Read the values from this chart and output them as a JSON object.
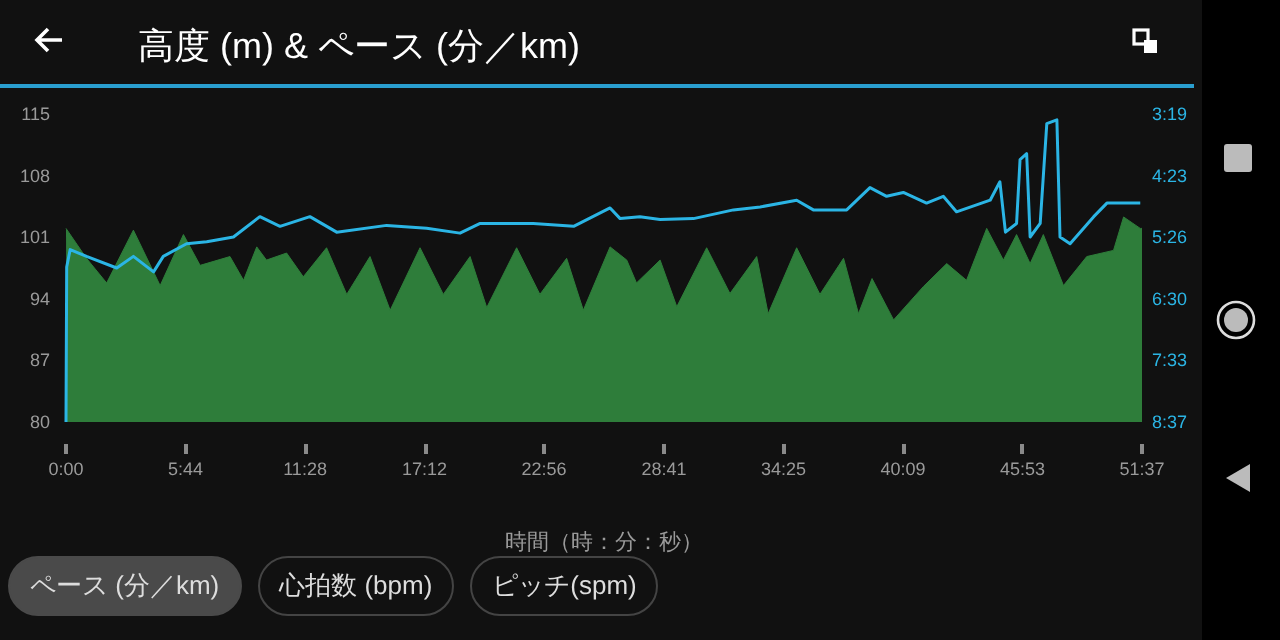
{
  "chart_data": {
    "type": "area",
    "title": "高度 (m) & ペース (分／km)",
    "xlabel": "時間（時：分：秒）",
    "series": [
      {
        "color": "#2e7d3a",
        "x": [
          0,
          2,
          59,
          117,
          194,
          271,
          338,
          386,
          472,
          511,
          549,
          577,
          635,
          683,
          750,
          808,
          875,
          933,
          1019,
          1086,
          1163,
          1211,
          1297,
          1364,
          1441,
          1489,
          1566,
          1614,
          1642,
          1710,
          1758,
          1844,
          1911,
          1988,
          2021,
          2103,
          2170,
          2238,
          2281,
          2320,
          2382,
          2468,
          2535,
          2592,
          2650,
          2698,
          2736,
          2775,
          2813,
          2871,
          2938,
          3015,
          3044,
          3092,
          3097
        ],
        "values": [
          102,
          102,
          98.6,
          95.8,
          101.8,
          95.5,
          101.3,
          97.8,
          98.8,
          96.1,
          99.9,
          98.4,
          99.2,
          96.5,
          99.8,
          94.5,
          98.8,
          92.7,
          99.8,
          94.5,
          98.8,
          93,
          99.8,
          94.5,
          98.6,
          92.7,
          99.9,
          98.4,
          95.8,
          98.4,
          93.1,
          99.8,
          94.6,
          98.8,
          92.3,
          99.8,
          94.5,
          98.6,
          92.3,
          96.3,
          91.6,
          95.4,
          98,
          96.1,
          102,
          98.4,
          101.3,
          98,
          101.3,
          95.5,
          98.8,
          99.5,
          103.3,
          102,
          102
        ]
      },
      {
        "type": "line",
        "axis": "y2",
        "color": "#2bb5e5",
        "x": [
          0,
          2,
          12,
          59,
          146,
          194,
          252,
          280,
          347,
          405,
          482,
          558,
          616,
          702,
          779,
          923,
          1038,
          1134,
          1192,
          1345,
          1461,
          1566,
          1595,
          1652,
          1710,
          1806,
          1921,
          1998,
          2103,
          2151,
          2247,
          2314,
          2362,
          2410,
          2477,
          2525,
          2563,
          2660,
          2688,
          2704,
          2736,
          2746,
          2765,
          2775,
          2804,
          2823,
          2852,
          2861,
          2890,
          2958,
          2996,
          3092
        ],
        "values": [
          517,
          357,
          339,
          346,
          358,
          346,
          362,
          346,
          333,
          331,
          326,
          305,
          315,
          305,
          321,
          314,
          317,
          322,
          312,
          312,
          315,
          296,
          307,
          305,
          308,
          307,
          298,
          295,
          288,
          298,
          298,
          275,
          284,
          280,
          291,
          284,
          300,
          288,
          269,
          321,
          312,
          246,
          240,
          326,
          312,
          209,
          205,
          326,
          333,
          305,
          291,
          291
        ]
      }
    ],
    "xlim": [
      0,
      3097
    ],
    "xticks": [
      {
        "value": 0,
        "label": "0:00"
      },
      {
        "value": 344,
        "label": "5:44"
      },
      {
        "value": 688,
        "label": "11:28"
      },
      {
        "value": 1032,
        "label": "17:12"
      },
      {
        "value": 1376,
        "label": "22:56"
      },
      {
        "value": 1721,
        "label": "28:41"
      },
      {
        "value": 2065,
        "label": "34:25"
      },
      {
        "value": 2409,
        "label": "40:09"
      },
      {
        "value": 2753,
        "label": "45:53"
      },
      {
        "value": 3097,
        "label": "51:37"
      }
    ],
    "ylim": [
      80,
      115
    ],
    "yticks": [
      80,
      87,
      94,
      101,
      108,
      115
    ],
    "y2lim": [
      517,
      199
    ],
    "y2ticks": [
      {
        "value": 199,
        "label": "3:19"
      },
      {
        "value": 263,
        "label": "4:23"
      },
      {
        "value": 326,
        "label": "5:26"
      },
      {
        "value": 390,
        "label": "6:30"
      },
      {
        "value": 453,
        "label": "7:33"
      },
      {
        "value": 517,
        "label": "8:37"
      }
    ],
    "grid": false,
    "annotations": [
      "ペース (分／km)",
      "心拍数 (bpm)",
      "ピッチ(spm)"
    ]
  }
}
